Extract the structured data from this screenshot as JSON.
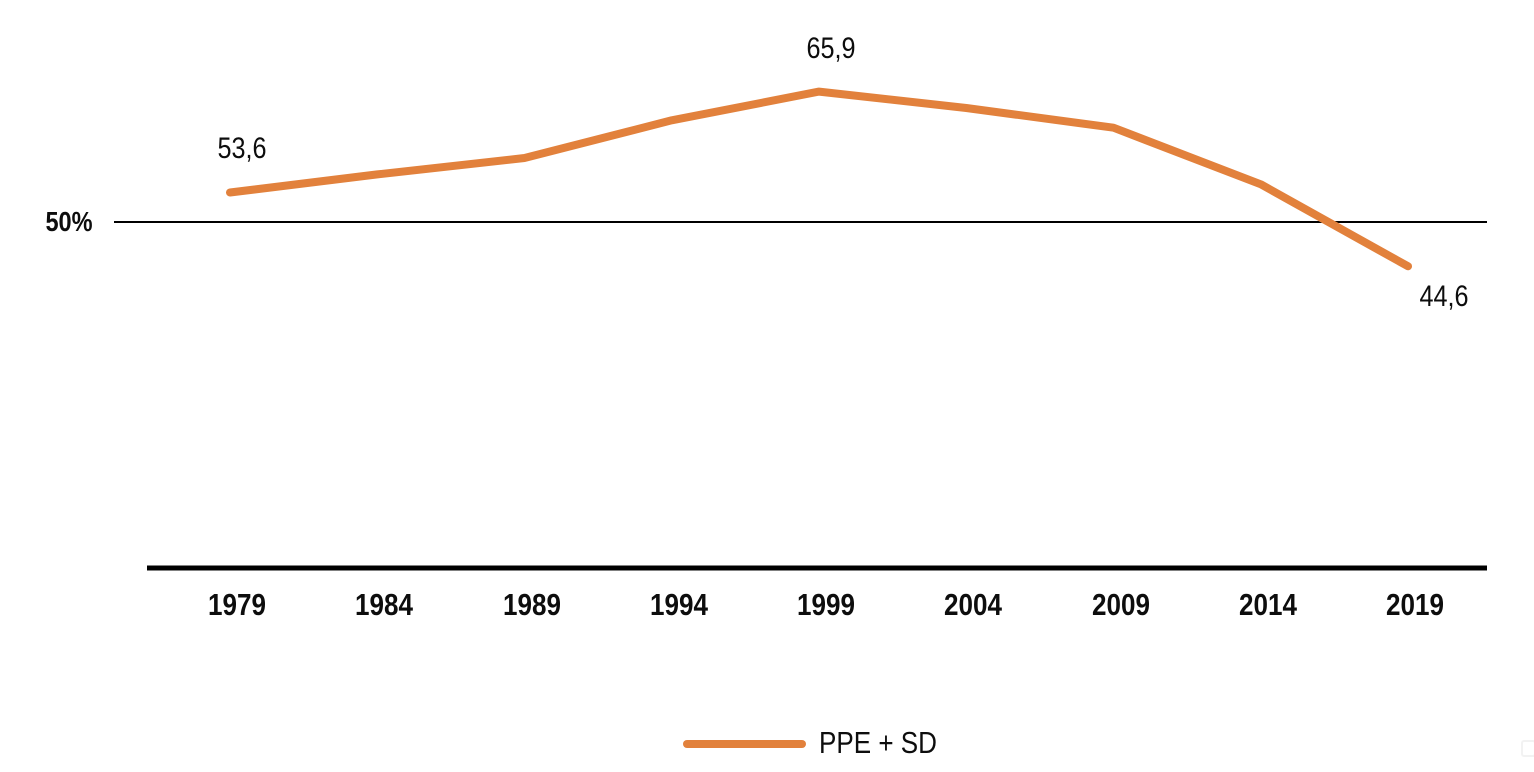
{
  "chart_data": {
    "type": "line",
    "title": "",
    "categories": [
      "1979",
      "1984",
      "1989",
      "1994",
      "1999",
      "2004",
      "2009",
      "2014",
      "2019"
    ],
    "series": [
      {
        "name": "PPE + SD",
        "color": "#E2813C",
        "values": [
          53.6,
          55.8,
          57.8,
          62.4,
          65.9,
          63.9,
          61.5,
          54.6,
          44.6
        ]
      }
    ],
    "value_labels": [
      {
        "index": 0,
        "text": "53,6",
        "position": "above"
      },
      {
        "index": 4,
        "text": "65,9",
        "position": "above"
      },
      {
        "index": 8,
        "text": "44,6",
        "position": "below-right"
      }
    ],
    "reference_line": {
      "value": 50,
      "label": "50%",
      "color": "#000000"
    },
    "x_axis": {
      "color": "#000000"
    },
    "legend": {
      "position": "bottom-center",
      "entries": [
        {
          "label": "PPE + SD",
          "color": "#E2813C"
        }
      ]
    },
    "ylim": [
      40,
      70
    ],
    "grid": false,
    "decimal_separator": ","
  }
}
